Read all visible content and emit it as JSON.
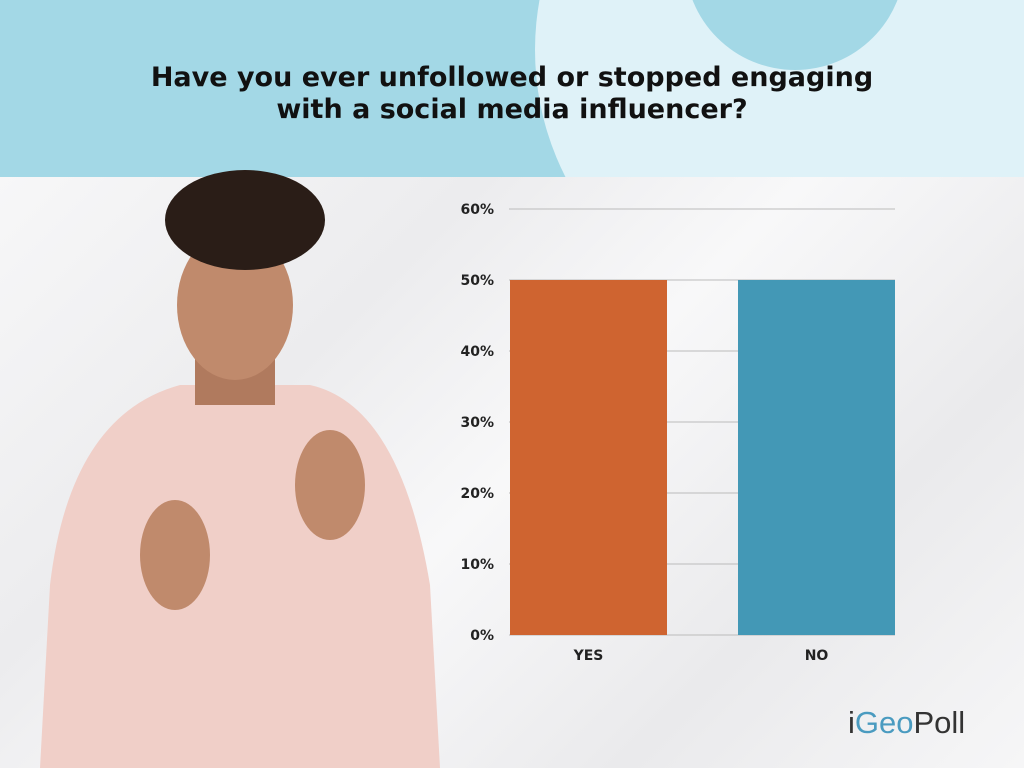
{
  "header": {
    "title_line1": "Have you ever unfollowed or stopped engaging",
    "title_line2": "with a social media influencer?"
  },
  "logo": {
    "text": "iGeoPoll",
    "part1": "Geo",
    "part2": "Poll"
  },
  "colors": {
    "header_bg": "#a3d8e6",
    "yes_bar": "#cf6430",
    "no_bar": "#4398b6"
  },
  "chart_data": {
    "type": "bar",
    "categories": [
      "YES",
      "NO"
    ],
    "values": [
      50,
      50
    ],
    "unit": "%",
    "ylim": [
      0,
      60
    ],
    "yticks": [
      "0%",
      "10%",
      "20%",
      "30%",
      "40%",
      "50%",
      "60%"
    ],
    "grid": true,
    "bar_colors": [
      "#cf6430",
      "#4398b6"
    ]
  }
}
